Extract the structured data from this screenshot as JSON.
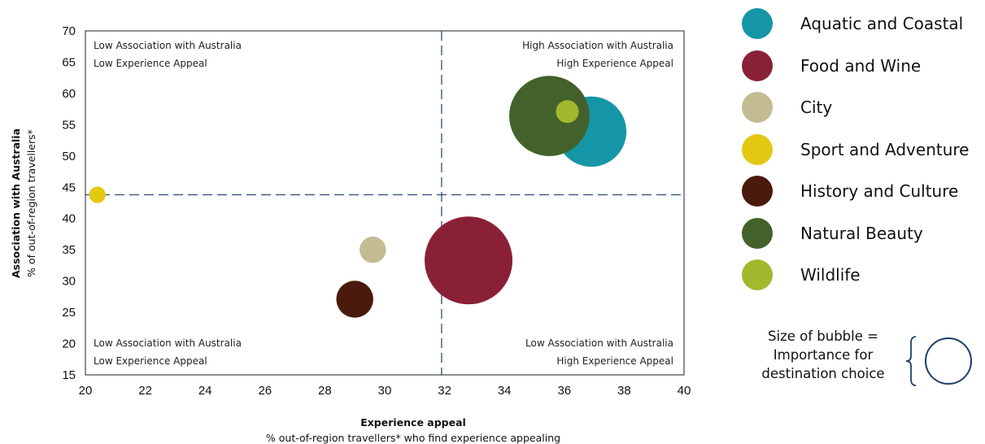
{
  "chart_data": {
    "type": "scatter",
    "xlabel": "Experience appeal",
    "xlabel_sub": "% out-of-region travellers* who find experience appealing",
    "ylabel": "Association with Australia",
    "ylabel_sub": "% of out-of-region travellers*",
    "xlim": [
      20,
      40
    ],
    "ylim": [
      15,
      70
    ],
    "xticks": [
      "20",
      "22",
      "24",
      "26",
      "28",
      "30",
      "32",
      "34",
      "36",
      "38",
      "40"
    ],
    "yticks": [
      "15",
      "20",
      "25",
      "30",
      "35",
      "40",
      "45",
      "50",
      "55",
      "60",
      "65",
      "70"
    ],
    "reference_lines": {
      "x": 31.9,
      "y": 43.8
    },
    "quadrants": {
      "top_left": [
        "Low Association with Australia",
        "Low Experience Appeal"
      ],
      "top_right": [
        "High Association with Australia",
        "High Experience Appeal"
      ],
      "bottom_left": [
        "Low Association with Australia",
        "Low Experience Appeal"
      ],
      "bottom_right": [
        "Low Association with Australia",
        "High Experience Appeal"
      ]
    },
    "series": [
      {
        "name": "Aquatic and Coastal",
        "color": "#1596a6",
        "x": 36.9,
        "y": 53.9,
        "size": 1.2
      },
      {
        "name": "Food and Wine",
        "color": "#8a2036",
        "x": 32.8,
        "y": 33.3,
        "size": 1.5
      },
      {
        "name": "City",
        "color": "#c3bb92",
        "x": 29.6,
        "y": 35.0,
        "size": 0.45
      },
      {
        "name": "Sport and Adventure",
        "color": "#e3c812",
        "x": 20.4,
        "y": 43.8,
        "size": 0.28
      },
      {
        "name": "History and Culture",
        "color": "#4a1a0c",
        "x": 29.0,
        "y": 27.1,
        "size": 0.63
      },
      {
        "name": "Natural Beauty",
        "color": "#43612a",
        "x": 35.5,
        "y": 56.4,
        "size": 1.37
      },
      {
        "name": "Wildlife",
        "color": "#a4b82e",
        "x": 36.1,
        "y": 57.1,
        "size": 0.39
      }
    ]
  },
  "size_note": [
    "Size of bubble =",
    "Importance for",
    "destination choice"
  ]
}
